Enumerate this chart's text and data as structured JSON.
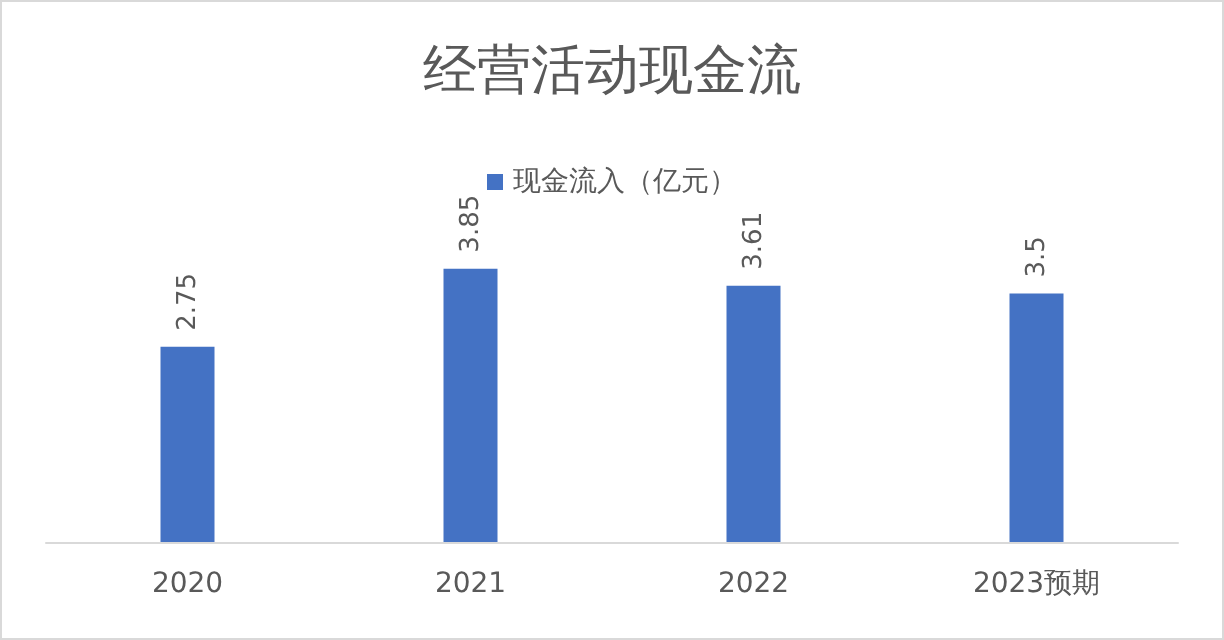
{
  "chart_data": {
    "type": "bar",
    "title": "经营活动现金流",
    "categories": [
      "2020",
      "2021",
      "2022",
      "2023预期"
    ],
    "series": [
      {
        "name": "现金流入（亿元）",
        "color": "#4472c4",
        "values": [
          2.75,
          3.85,
          3.61,
          3.5
        ]
      }
    ],
    "data_labels": true,
    "legend": "top",
    "grid": false
  }
}
